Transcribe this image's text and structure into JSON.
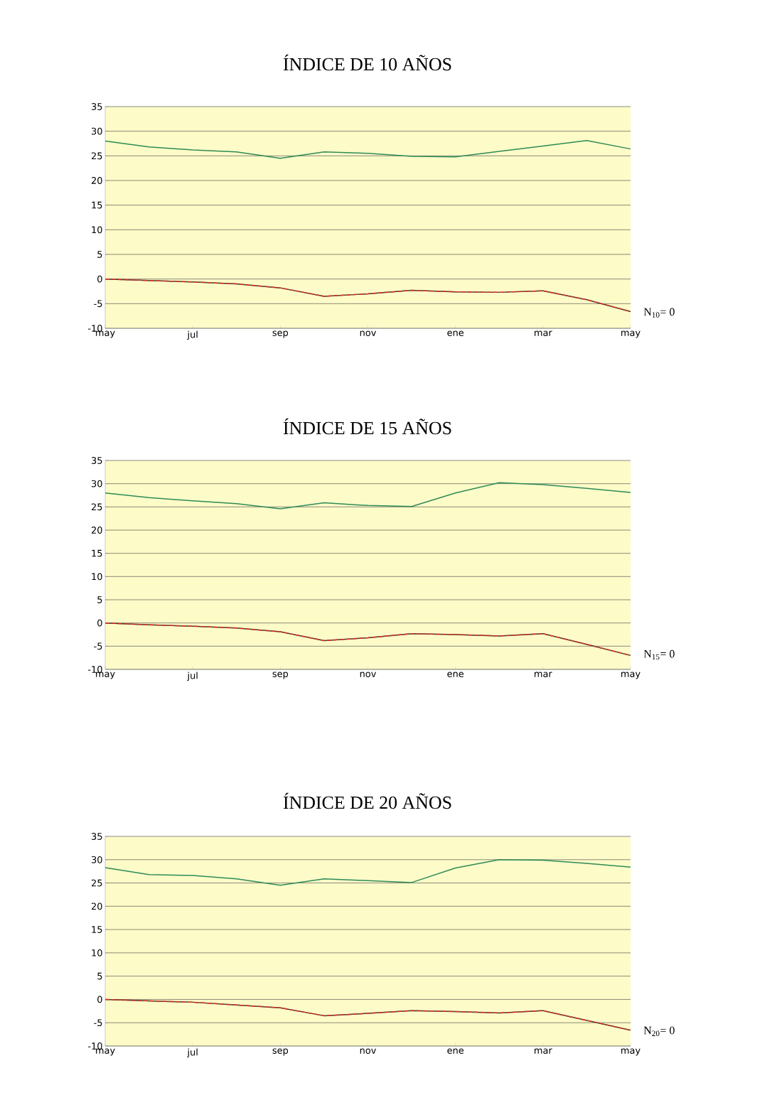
{
  "chart_data": [
    {
      "type": "line",
      "title": "ÍNDICE DE 10 AÑOS",
      "categories": [
        "may",
        null,
        "jul",
        null,
        "sep",
        null,
        "nov",
        null,
        "ene",
        null,
        "mar",
        null,
        "may"
      ],
      "series": [
        {
          "color": "#2e8b57",
          "values": [
            28,
            26.8,
            26.2,
            25.8,
            24.5,
            25.8,
            25.5,
            24.9,
            24.8,
            25.9,
            27,
            28.1,
            26.4
          ]
        },
        {
          "color": "#3a3a3a",
          "values": [
            0,
            -0.3,
            -0.6,
            -1,
            -1.8,
            -3.5,
            -3,
            -2.3,
            -2.6,
            -2.7,
            -2.4,
            -4.2,
            -6.6
          ]
        },
        {
          "color": "#e0301e",
          "line_style": "dashed",
          "values": [
            0,
            -0.3,
            -0.6,
            -1,
            -1.8,
            -3.5,
            -3,
            -2.3,
            -2.6,
            -2.7,
            -2.4,
            -4.2,
            -6.6
          ]
        }
      ],
      "ylim": [
        -10,
        35
      ],
      "yticks": [
        -10,
        -5,
        0,
        5,
        10,
        15,
        20,
        25,
        30,
        35
      ],
      "grid": "y",
      "marker": "none",
      "annotations": [
        "N$_{10}$= 0"
      ]
    },
    {
      "type": "line",
      "title": "ÍNDICE DE 15 AÑOS",
      "categories": [
        "may",
        null,
        "jul",
        null,
        "sep",
        null,
        "nov",
        null,
        "ene",
        null,
        "mar",
        null,
        "may"
      ],
      "series": [
        {
          "color": "#2e8b57",
          "values": [
            28,
            27,
            26.3,
            25.7,
            24.6,
            25.9,
            25.3,
            25.1,
            28,
            30.2,
            29.8,
            29,
            28.1
          ]
        },
        {
          "color": "#3a3a3a",
          "values": [
            0,
            -0.4,
            -0.7,
            -1.1,
            -1.9,
            -3.8,
            -3.2,
            -2.3,
            -2.5,
            -2.8,
            -2.3,
            -4.6,
            -7
          ]
        },
        {
          "color": "#e0301e",
          "line_style": "dashed",
          "values": [
            0,
            -0.4,
            -0.7,
            -1.1,
            -1.9,
            -3.8,
            -3.2,
            -2.3,
            -2.5,
            -2.8,
            -2.3,
            -4.6,
            -7
          ]
        }
      ],
      "ylim": [
        -10,
        35
      ],
      "yticks": [
        -10,
        -5,
        0,
        5,
        10,
        15,
        20,
        25,
        30,
        35
      ],
      "grid": "y",
      "marker": "none",
      "annotations": [
        "N$_{15}$= 0"
      ]
    },
    {
      "type": "line",
      "title": "ÍNDICE DE 20 AÑOS",
      "categories": [
        "may",
        null,
        "jul",
        null,
        "sep",
        null,
        "nov",
        null,
        "ene",
        null,
        "mar",
        null,
        "may"
      ],
      "series": [
        {
          "color": "#2e8b57",
          "values": [
            28.3,
            26.8,
            26.6,
            25.9,
            24.5,
            25.9,
            25.5,
            25.1,
            28.2,
            30,
            29.9,
            29.2,
            28.4
          ]
        },
        {
          "color": "#3a3a3a",
          "values": [
            0,
            -0.3,
            -0.6,
            -1.2,
            -1.8,
            -3.5,
            -3,
            -2.4,
            -2.6,
            -2.9,
            -2.4,
            -4.5,
            -6.6
          ]
        },
        {
          "color": "#e0301e",
          "line_style": "dashed",
          "values": [
            0,
            -0.3,
            -0.6,
            -1.2,
            -1.8,
            -3.5,
            -3,
            -2.4,
            -2.6,
            -2.9,
            -2.4,
            -4.5,
            -6.6
          ]
        }
      ],
      "ylim": [
        -10,
        35
      ],
      "yticks": [
        -10,
        -5,
        0,
        5,
        10,
        15,
        20,
        25,
        30,
        35
      ],
      "grid": "y",
      "marker": "none",
      "annotations": [
        "N$_{20}$= 0"
      ]
    }
  ]
}
